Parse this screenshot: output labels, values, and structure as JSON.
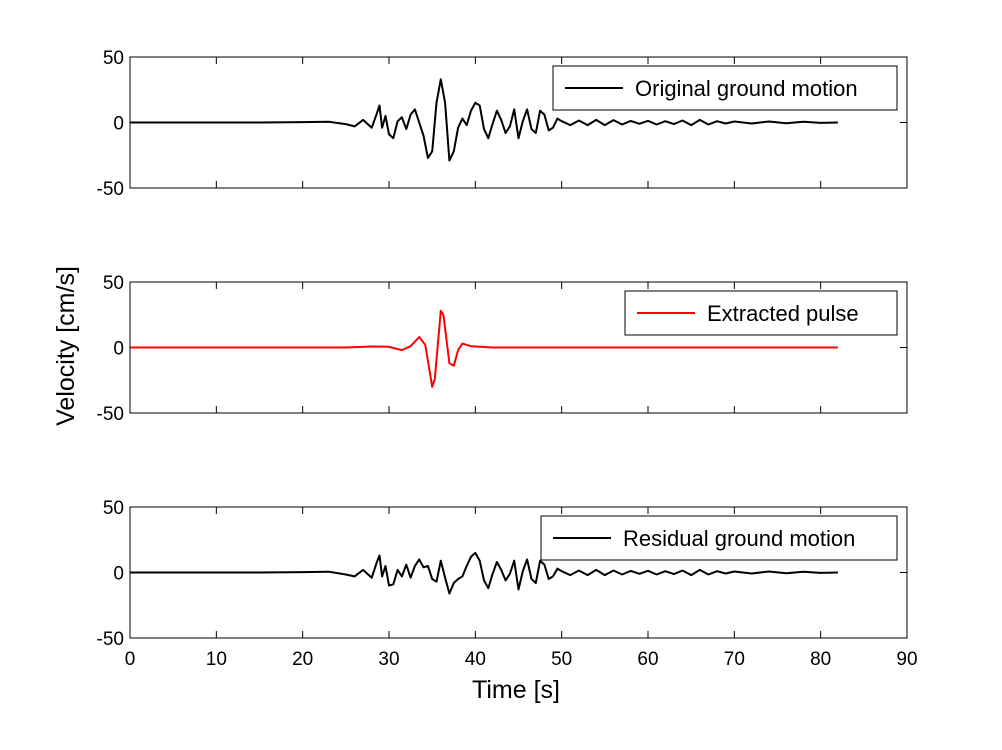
{
  "chart_data": {
    "type": "line",
    "ylabel": "Velocity [cm/s]",
    "xlabel": "Time [s]",
    "xlim": [
      0,
      90
    ],
    "xticks": [
      "0",
      "10",
      "20",
      "30",
      "40",
      "50",
      "60",
      "70",
      "80",
      "90"
    ],
    "grid": false,
    "panels": [
      {
        "legend": "Original ground motion",
        "legend_position": "top-right",
        "color": "#000000",
        "ylim": [
          -50,
          50
        ],
        "yticks": [
          "50",
          "0",
          "-50"
        ],
        "points": [
          [
            0,
            0
          ],
          [
            15,
            0
          ],
          [
            20,
            0.3
          ],
          [
            23,
            0.6
          ],
          [
            25,
            -1.2
          ],
          [
            26,
            -3
          ],
          [
            27,
            2
          ],
          [
            28,
            -4
          ],
          [
            28.6,
            7
          ],
          [
            28.9,
            13
          ],
          [
            29.2,
            -4
          ],
          [
            29.6,
            5
          ],
          [
            30,
            -9
          ],
          [
            30.5,
            -12
          ],
          [
            31,
            1
          ],
          [
            31.5,
            4
          ],
          [
            32,
            -5
          ],
          [
            32.5,
            6
          ],
          [
            33,
            10
          ],
          [
            33.5,
            0
          ],
          [
            34,
            -10
          ],
          [
            34.5,
            -27
          ],
          [
            35,
            -22
          ],
          [
            35.5,
            15
          ],
          [
            36,
            33
          ],
          [
            36.5,
            15
          ],
          [
            37,
            -29
          ],
          [
            37.5,
            -22
          ],
          [
            38,
            -4
          ],
          [
            38.5,
            3
          ],
          [
            39,
            -2
          ],
          [
            39.5,
            9
          ],
          [
            40,
            15
          ],
          [
            40.5,
            13
          ],
          [
            41,
            -5
          ],
          [
            41.5,
            -12
          ],
          [
            42,
            -1
          ],
          [
            42.5,
            9
          ],
          [
            43,
            2
          ],
          [
            43.5,
            -8
          ],
          [
            44,
            -3
          ],
          [
            44.5,
            10
          ],
          [
            45,
            -12
          ],
          [
            45.5,
            1
          ],
          [
            46,
            10
          ],
          [
            46.5,
            -5
          ],
          [
            47,
            -8
          ],
          [
            47.5,
            9
          ],
          [
            48,
            6
          ],
          [
            48.5,
            -6
          ],
          [
            49,
            -4
          ],
          [
            49.5,
            3
          ],
          [
            50,
            1
          ],
          [
            51,
            -2
          ],
          [
            52,
            1.5
          ],
          [
            53,
            -2
          ],
          [
            54,
            2
          ],
          [
            55,
            -2
          ],
          [
            56,
            1.8
          ],
          [
            57,
            -1.5
          ],
          [
            58,
            1.2
          ],
          [
            59,
            -1
          ],
          [
            60,
            1.3
          ],
          [
            61,
            -1.5
          ],
          [
            62,
            1
          ],
          [
            63,
            -1.2
          ],
          [
            64,
            1.5
          ],
          [
            65,
            -2
          ],
          [
            66,
            2
          ],
          [
            67,
            -1.5
          ],
          [
            68,
            1
          ],
          [
            69,
            -0.8
          ],
          [
            70,
            0.8
          ],
          [
            72,
            -0.8
          ],
          [
            74,
            0.8
          ],
          [
            76,
            -0.6
          ],
          [
            78,
            0.5
          ],
          [
            80,
            -0.3
          ],
          [
            82,
            0
          ]
        ]
      },
      {
        "legend": "Extracted pulse",
        "legend_position": "top-right",
        "color": "#ff0000",
        "ylim": [
          -50,
          50
        ],
        "yticks": [
          "50",
          "0",
          "-50"
        ],
        "points": [
          [
            0,
            0
          ],
          [
            25,
            0
          ],
          [
            28,
            0.8
          ],
          [
            30,
            0.5
          ],
          [
            31.5,
            -2
          ],
          [
            32.5,
            1
          ],
          [
            33.5,
            8
          ],
          [
            34.2,
            2
          ],
          [
            35,
            -30
          ],
          [
            35.3,
            -24
          ],
          [
            36,
            28
          ],
          [
            36.3,
            25
          ],
          [
            37,
            -12
          ],
          [
            37.5,
            -14
          ],
          [
            38,
            -2
          ],
          [
            38.5,
            3
          ],
          [
            39.5,
            1
          ],
          [
            40.5,
            0.5
          ],
          [
            42,
            0
          ],
          [
            82,
            0
          ]
        ]
      },
      {
        "legend": "Residual ground motion",
        "legend_position": "top-right",
        "color": "#000000",
        "ylim": [
          -50,
          50
        ],
        "yticks": [
          "50",
          "0",
          "-50"
        ],
        "points": [
          [
            0,
            0
          ],
          [
            15,
            0
          ],
          [
            20,
            0.3
          ],
          [
            23,
            0.6
          ],
          [
            25,
            -1.5
          ],
          [
            26,
            -3
          ],
          [
            27,
            2
          ],
          [
            28,
            -4
          ],
          [
            28.6,
            8
          ],
          [
            28.9,
            13
          ],
          [
            29.2,
            -3
          ],
          [
            29.6,
            5
          ],
          [
            30,
            -10
          ],
          [
            30.5,
            -9
          ],
          [
            31,
            2
          ],
          [
            31.5,
            -3
          ],
          [
            32,
            6
          ],
          [
            32.5,
            -4
          ],
          [
            33,
            5
          ],
          [
            33.5,
            10
          ],
          [
            34,
            4
          ],
          [
            34.5,
            5
          ],
          [
            35,
            -5
          ],
          [
            35.5,
            -7
          ],
          [
            36,
            9
          ],
          [
            36.5,
            -4
          ],
          [
            37,
            -16
          ],
          [
            37.5,
            -8
          ],
          [
            38,
            -5
          ],
          [
            38.5,
            -3
          ],
          [
            39,
            5
          ],
          [
            39.5,
            12
          ],
          [
            40,
            15
          ],
          [
            40.5,
            9
          ],
          [
            41,
            -6
          ],
          [
            41.5,
            -12
          ],
          [
            42,
            -1
          ],
          [
            42.5,
            8
          ],
          [
            43,
            2
          ],
          [
            43.5,
            -6
          ],
          [
            44,
            -1
          ],
          [
            44.5,
            9
          ],
          [
            45,
            -13
          ],
          [
            45.5,
            1
          ],
          [
            46,
            10
          ],
          [
            46.5,
            -5
          ],
          [
            47,
            -8
          ],
          [
            47.5,
            9
          ],
          [
            48,
            6
          ],
          [
            48.5,
            -5
          ],
          [
            49,
            -3
          ],
          [
            49.5,
            3
          ],
          [
            50,
            1
          ],
          [
            51,
            -2
          ],
          [
            52,
            1.5
          ],
          [
            53,
            -2
          ],
          [
            54,
            2
          ],
          [
            55,
            -2
          ],
          [
            56,
            1.5
          ],
          [
            57,
            -1.5
          ],
          [
            58,
            1.2
          ],
          [
            59,
            -1
          ],
          [
            60,
            1.3
          ],
          [
            61,
            -1.5
          ],
          [
            62,
            1
          ],
          [
            63,
            -1.2
          ],
          [
            64,
            1.5
          ],
          [
            65,
            -2
          ],
          [
            66,
            2
          ],
          [
            67,
            -1.5
          ],
          [
            68,
            1
          ],
          [
            69,
            -0.8
          ],
          [
            70,
            0.8
          ],
          [
            72,
            -0.8
          ],
          [
            74,
            0.8
          ],
          [
            76,
            -0.6
          ],
          [
            78,
            0.5
          ],
          [
            80,
            -0.3
          ],
          [
            82,
            0
          ]
        ]
      }
    ]
  }
}
